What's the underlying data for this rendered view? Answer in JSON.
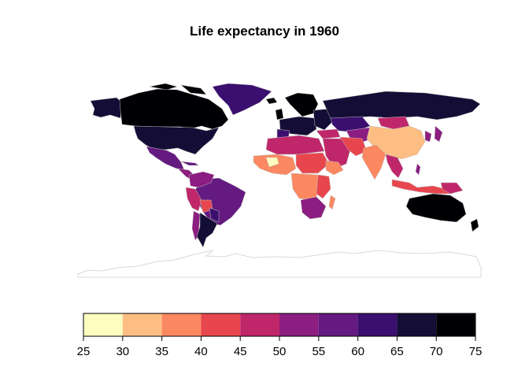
{
  "map": {
    "title": "Life expectancy in 1960"
  },
  "legend": {
    "breaks": [
      "25",
      "30",
      "35",
      "40",
      "45",
      "50",
      "55",
      "60",
      "65",
      "70",
      "75"
    ],
    "colors": [
      "#FCFDBF",
      "#FDBE84",
      "#FB8861",
      "#E8464E",
      "#C0266A",
      "#8C1D81",
      "#641A80",
      "#3B0F70",
      "#140E36",
      "#000004"
    ]
  }
}
